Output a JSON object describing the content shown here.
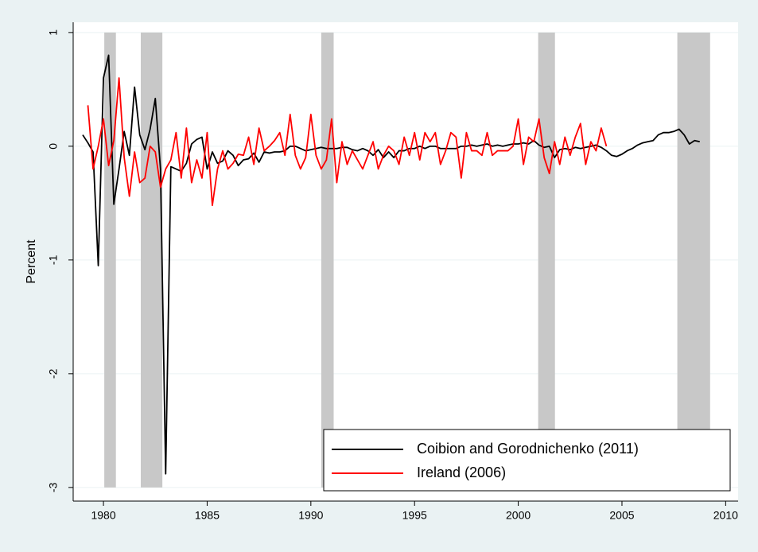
{
  "chart_data": {
    "type": "line",
    "ylabel": "Percent",
    "xlim": [
      1978.54,
      2010.6
    ],
    "ylim": [
      -3.12,
      1.09
    ],
    "xticks": [
      1980,
      1985,
      1990,
      1995,
      2000,
      2005,
      2010
    ],
    "yticks": [
      -3,
      -2,
      -1,
      0,
      1
    ],
    "grid": true,
    "legend": "lower right",
    "shaded_regions": [
      [
        1980.04,
        1980.6
      ],
      [
        1981.8,
        1982.84
      ],
      [
        1990.5,
        1991.1
      ],
      [
        2000.96,
        2001.77
      ],
      [
        2007.67,
        2009.25
      ]
    ],
    "shade_color": "#c8c8c8",
    "series": [
      {
        "name": "Coibion and Gorodnichenko (2011)",
        "color": "#000000",
        "x": [
          1979,
          1979.25,
          1979.5,
          1979.75,
          1980,
          1980.25,
          1980.5,
          1980.75,
          1981,
          1981.25,
          1981.5,
          1981.75,
          1982,
          1982.25,
          1982.5,
          1982.75,
          1983,
          1983.25,
          1983.5,
          1983.75,
          1984,
          1984.25,
          1984.5,
          1984.75,
          1985,
          1985.25,
          1985.5,
          1985.75,
          1986,
          1986.25,
          1986.5,
          1986.75,
          1987,
          1987.25,
          1987.5,
          1987.75,
          1988,
          1988.25,
          1988.5,
          1988.75,
          1989,
          1989.25,
          1989.5,
          1989.75,
          1990,
          1990.25,
          1990.5,
          1990.75,
          1991,
          1991.25,
          1991.5,
          1991.75,
          1992,
          1992.25,
          1992.5,
          1992.75,
          1993,
          1993.25,
          1993.5,
          1993.75,
          1994,
          1994.25,
          1994.5,
          1994.75,
          1995,
          1995.25,
          1995.5,
          1995.75,
          1996,
          1996.25,
          1996.5,
          1996.75,
          1997,
          1997.25,
          1997.5,
          1997.75,
          1998,
          1998.25,
          1998.5,
          1998.75,
          1999,
          1999.25,
          1999.5,
          1999.75,
          2000,
          2000.25,
          2000.5,
          2000.75,
          2001,
          2001.25,
          2001.5,
          2001.75,
          2002,
          2002.25,
          2002.5,
          2002.75,
          2003,
          2003.25,
          2003.5,
          2003.75,
          2004,
          2004.25,
          2004.5,
          2004.75,
          2005,
          2005.25,
          2005.5,
          2005.75,
          2006,
          2006.25,
          2006.5,
          2006.75,
          2007,
          2007.25,
          2007.5,
          2007.75,
          2008,
          2008.25,
          2008.5,
          2008.75
        ],
        "values": [
          0.1,
          0.03,
          -0.05,
          -1.05,
          0.6,
          0.8,
          -0.51,
          -0.2,
          0.13,
          -0.08,
          0.52,
          0.1,
          -0.03,
          0.15,
          0.42,
          -0.2,
          -2.88,
          -0.18,
          -0.2,
          -0.22,
          -0.15,
          0.02,
          0.06,
          0.08,
          -0.2,
          -0.05,
          -0.15,
          -0.13,
          -0.04,
          -0.08,
          -0.17,
          -0.12,
          -0.11,
          -0.06,
          -0.14,
          -0.05,
          -0.06,
          -0.05,
          -0.05,
          -0.04,
          0.0,
          0.0,
          -0.02,
          -0.04,
          -0.03,
          -0.02,
          -0.01,
          -0.02,
          -0.02,
          -0.02,
          -0.01,
          -0.01,
          -0.03,
          -0.04,
          -0.02,
          -0.04,
          -0.08,
          -0.03,
          -0.1,
          -0.05,
          -0.1,
          -0.04,
          -0.04,
          -0.02,
          -0.02,
          0.0,
          -0.02,
          0.0,
          0.0,
          -0.02,
          -0.02,
          -0.02,
          -0.02,
          0.0,
          0.0,
          0.01,
          0.0,
          0.01,
          0.02,
          0.0,
          0.01,
          0.0,
          0.01,
          0.02,
          0.02,
          0.03,
          0.02,
          0.05,
          0.01,
          -0.01,
          0.0,
          -0.1,
          -0.03,
          -0.02,
          -0.03,
          -0.01,
          -0.02,
          -0.01,
          0.0,
          0.01,
          -0.01,
          -0.04,
          -0.08,
          -0.09,
          -0.07,
          -0.04,
          -0.02,
          0.01,
          0.03,
          0.04,
          0.05,
          0.1,
          0.12,
          0.12,
          0.13,
          0.15,
          0.1,
          0.02,
          0.05,
          0.04
        ]
      },
      {
        "name": "Ireland (2006)",
        "color": "#ff0000",
        "x": [
          1979.25,
          1979.5,
          1979.75,
          1980,
          1980.25,
          1980.5,
          1980.75,
          1981,
          1981.25,
          1981.5,
          1981.75,
          1982,
          1982.25,
          1982.5,
          1982.75,
          1983,
          1983.25,
          1983.5,
          1983.75,
          1984,
          1984.25,
          1984.5,
          1984.75,
          1985,
          1985.25,
          1985.5,
          1985.75,
          1986,
          1986.25,
          1986.5,
          1986.75,
          1987,
          1987.25,
          1987.5,
          1987.75,
          1988,
          1988.25,
          1988.5,
          1988.75,
          1989,
          1989.25,
          1989.5,
          1989.75,
          1990,
          1990.25,
          1990.5,
          1990.75,
          1991,
          1991.25,
          1991.5,
          1991.75,
          1992,
          1992.25,
          1992.5,
          1992.75,
          1993,
          1993.25,
          1993.5,
          1993.75,
          1994,
          1994.25,
          1994.5,
          1994.75,
          1995,
          1995.25,
          1995.5,
          1995.75,
          1996,
          1996.25,
          1996.5,
          1996.75,
          1997,
          1997.25,
          1997.5,
          1997.75,
          1998,
          1998.25,
          1998.5,
          1998.75,
          1999,
          1999.25,
          1999.5,
          1999.75,
          2000,
          2000.25,
          2000.5,
          2000.75,
          2001,
          2001.25,
          2001.5,
          2001.75,
          2002,
          2002.25,
          2002.5,
          2002.75,
          2003,
          2003.25,
          2003.5,
          2003.75,
          2004,
          2004.25
        ],
        "values": [
          0.36,
          -0.2,
          0.0,
          0.24,
          -0.17,
          0.05,
          0.6,
          -0.1,
          -0.44,
          -0.05,
          -0.32,
          -0.28,
          0.0,
          -0.05,
          -0.36,
          -0.2,
          -0.12,
          0.12,
          -0.28,
          0.16,
          -0.32,
          -0.12,
          -0.28,
          0.12,
          -0.52,
          -0.2,
          -0.04,
          -0.2,
          -0.15,
          -0.07,
          -0.08,
          0.08,
          -0.16,
          0.16,
          -0.04,
          0.0,
          0.05,
          0.12,
          -0.08,
          0.28,
          -0.08,
          -0.2,
          -0.1,
          0.28,
          -0.08,
          -0.2,
          -0.12,
          0.24,
          -0.32,
          0.04,
          -0.16,
          -0.04,
          -0.12,
          -0.2,
          -0.08,
          0.04,
          -0.2,
          -0.08,
          0.0,
          -0.04,
          -0.16,
          0.08,
          -0.08,
          0.12,
          -0.12,
          0.12,
          0.04,
          0.12,
          -0.16,
          -0.04,
          0.12,
          0.08,
          -0.28,
          0.12,
          -0.04,
          -0.04,
          -0.08,
          0.12,
          -0.08,
          -0.04,
          -0.04,
          -0.04,
          0.0,
          0.24,
          -0.16,
          0.08,
          0.04,
          0.24,
          -0.1,
          -0.24,
          0.04,
          -0.16,
          0.08,
          -0.08,
          0.08,
          0.2,
          -0.16,
          0.04,
          -0.04,
          0.16,
          0.0
        ]
      }
    ]
  }
}
